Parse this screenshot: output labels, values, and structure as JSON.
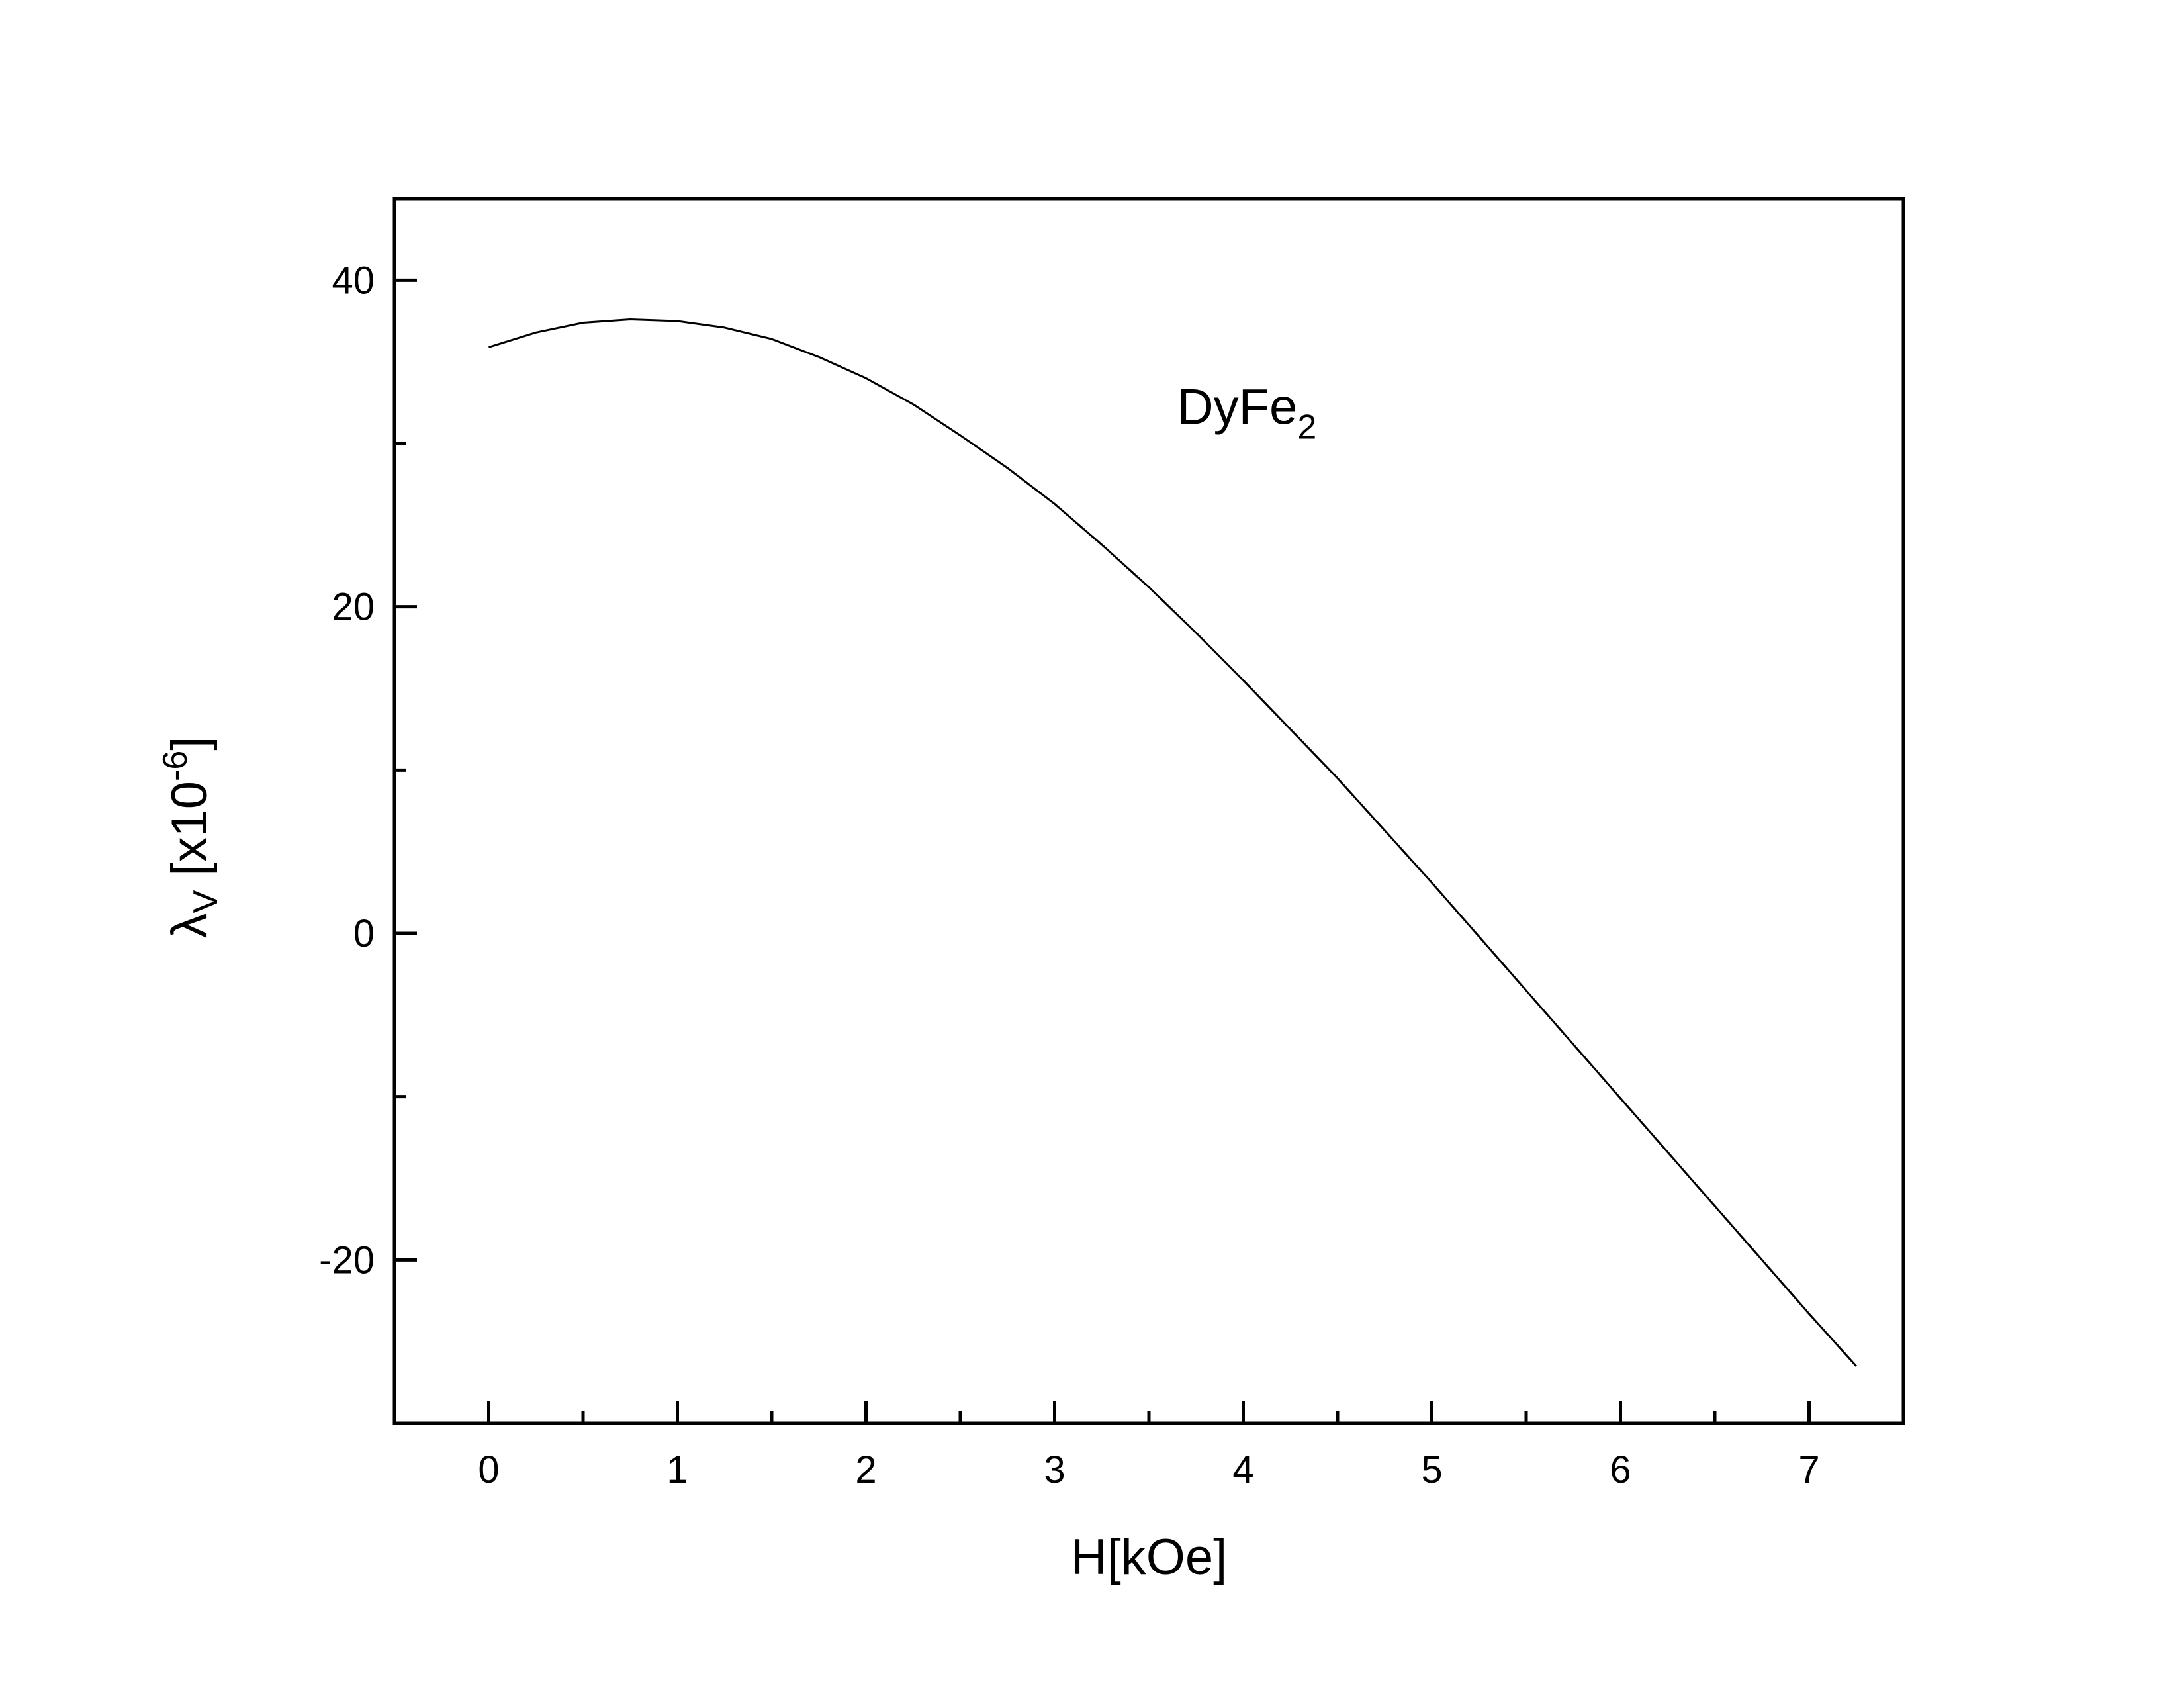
{
  "chart_data": {
    "type": "line",
    "title": "",
    "xlabel": "H[kOe]",
    "ylabel": {
      "symbol": "λ",
      "symbol_sub": "V",
      "unit_open": " [x10",
      "unit_exp": "-6",
      "unit_close": "]"
    },
    "xlim": [
      -0.5,
      7.5
    ],
    "ylim": [
      -30,
      45
    ],
    "x_ticks": [
      0,
      1,
      2,
      3,
      4,
      5,
      6,
      7
    ],
    "x_tick_labels": [
      "0",
      "1",
      "2",
      "3",
      "4",
      "5",
      "6",
      "7"
    ],
    "x_minor_ticks": [
      0.5,
      1.5,
      2.5,
      3.5,
      4.5,
      5.5,
      6.5
    ],
    "y_ticks": [
      -20,
      0,
      20,
      40
    ],
    "y_tick_labels": [
      "-20",
      "0",
      "20",
      "40"
    ],
    "y_minor_ticks": [
      -10,
      10,
      30
    ],
    "grid": false,
    "annotation": {
      "main": "DyFe",
      "sub": "2",
      "x": 3.65,
      "y": 31.2
    },
    "series": [
      {
        "color": "#000000",
        "x": [
          0,
          0.25,
          0.5,
          0.75,
          1.0,
          1.25,
          1.5,
          1.75,
          2.0,
          2.25,
          2.5,
          2.75,
          3.0,
          3.25,
          3.5,
          3.75,
          4.0,
          4.25,
          4.5,
          4.75,
          5.0,
          5.25,
          5.5,
          5.75,
          6.0,
          6.25,
          6.5,
          6.75,
          7.0,
          7.25
        ],
        "y": [
          35.9,
          36.8,
          37.4,
          37.6,
          37.5,
          37.1,
          36.4,
          35.3,
          34.0,
          32.4,
          30.5,
          28.5,
          26.3,
          23.8,
          21.2,
          18.4,
          15.5,
          12.5,
          9.5,
          6.3,
          3.1,
          -0.2,
          -3.5,
          -6.8,
          -10.1,
          -13.4,
          -16.7,
          -20.0,
          -23.3,
          -26.5
        ]
      }
    ]
  }
}
